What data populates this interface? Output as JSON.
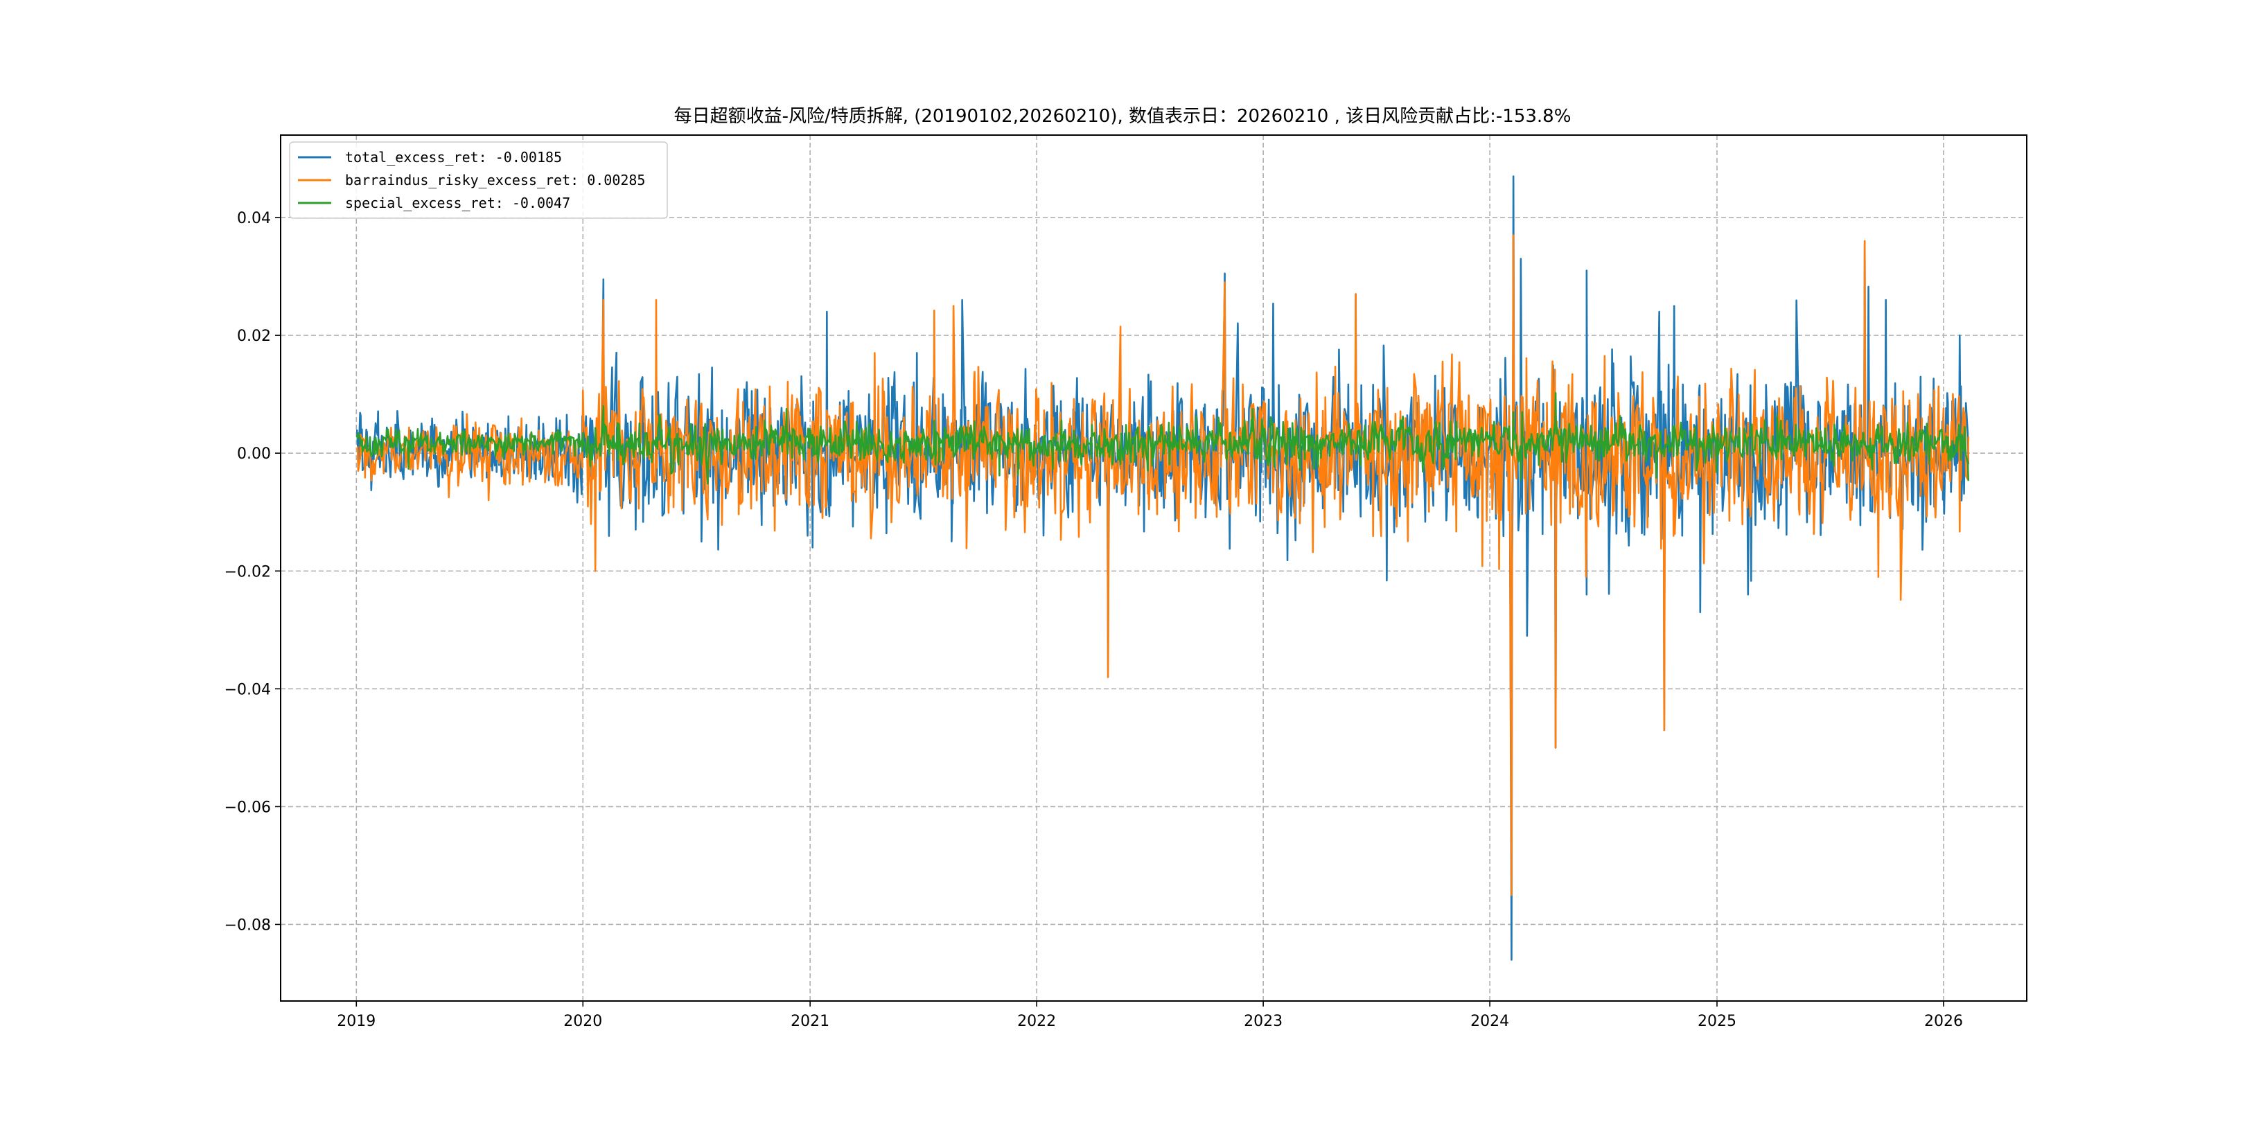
{
  "chart_data": {
    "type": "line",
    "title": "每日超额收益-风险/特质拆解, (20190102,20260210),  数值表示日：20260210 , 该日风险贡献占比:-153.8%",
    "xlabel": "",
    "ylabel": "",
    "x_range": [
      "2018-09-01",
      "2026-05-15"
    ],
    "ylim": [
      -0.093,
      0.054
    ],
    "grid": true,
    "legend_position": "upper-left",
    "xticks": [
      {
        "date": "2019-01-01",
        "label": "2019"
      },
      {
        "date": "2020-01-01",
        "label": "2020"
      },
      {
        "date": "2021-01-01",
        "label": "2021"
      },
      {
        "date": "2022-01-01",
        "label": "2022"
      },
      {
        "date": "2023-01-01",
        "label": "2023"
      },
      {
        "date": "2024-01-01",
        "label": "2024"
      },
      {
        "date": "2025-01-01",
        "label": "2025"
      },
      {
        "date": "2026-01-01",
        "label": "2026"
      }
    ],
    "yticks": [
      {
        "value": 0.04,
        "label": "0.04"
      },
      {
        "value": 0.02,
        "label": "0.02"
      },
      {
        "value": 0.0,
        "label": "0.00"
      },
      {
        "value": -0.02,
        "label": "−0.02"
      },
      {
        "value": -0.04,
        "label": "−0.04"
      },
      {
        "value": -0.06,
        "label": "−0.06"
      },
      {
        "value": -0.08,
        "label": "−0.08"
      }
    ],
    "series": [
      {
        "name": "total_excess_ret",
        "legend_label": "total_excess_ret: -0.00185",
        "color": "#1f77b4",
        "noise_scale": [
          0.0045,
          0.009,
          0.009,
          0.009,
          0.0095,
          0.011,
          0.01,
          0.009
        ],
        "points": [
          {
            "x": "2019-01-02",
            "y": 0.004
          },
          {
            "x": "2020-02-03",
            "y": 0.0295
          },
          {
            "x": "2020-07-10",
            "y": -0.015
          },
          {
            "x": "2021-01-05",
            "y": -0.016
          },
          {
            "x": "2021-01-28",
            "y": 0.024
          },
          {
            "x": "2021-09-03",
            "y": 0.026
          },
          {
            "x": "2022-04-26",
            "y": -0.038
          },
          {
            "x": "2022-10-31",
            "y": 0.0305
          },
          {
            "x": "2023-05-30",
            "y": 0.027
          },
          {
            "x": "2024-02-05",
            "y": -0.086
          },
          {
            "x": "2024-02-08",
            "y": 0.047
          },
          {
            "x": "2024-02-20",
            "y": 0.033
          },
          {
            "x": "2024-03-01",
            "y": -0.031
          },
          {
            "x": "2024-04-16",
            "y": -0.05
          },
          {
            "x": "2024-06-05",
            "y": -0.024
          },
          {
            "x": "2024-06-05",
            "y": 0.031
          },
          {
            "x": "2024-09-30",
            "y": 0.024
          },
          {
            "x": "2024-10-08",
            "y": -0.047
          },
          {
            "x": "2024-12-05",
            "y": -0.027
          },
          {
            "x": "2025-02-20",
            "y": -0.024
          },
          {
            "x": "2025-08-27",
            "y": 0.036
          },
          {
            "x": "2025-09-30",
            "y": 0.026
          },
          {
            "x": "2026-01-27",
            "y": 0.02
          },
          {
            "x": "2026-02-10",
            "y": -0.00185
          }
        ]
      },
      {
        "name": "barraindus_risky_excess_ret",
        "legend_label": "barraindus_risky_excess_ret: 0.00285",
        "color": "#ff7f0e",
        "noise_scale": [
          0.004,
          0.0085,
          0.0085,
          0.0085,
          0.009,
          0.0105,
          0.0095,
          0.0085
        ],
        "points": [
          {
            "x": "2019-01-02",
            "y": 0.001
          },
          {
            "x": "2020-01-21",
            "y": -0.02
          },
          {
            "x": "2020-02-03",
            "y": 0.026
          },
          {
            "x": "2020-04-28",
            "y": 0.026
          },
          {
            "x": "2021-08-20",
            "y": 0.025
          },
          {
            "x": "2022-04-26",
            "y": -0.038
          },
          {
            "x": "2022-10-31",
            "y": 0.029
          },
          {
            "x": "2023-05-30",
            "y": 0.027
          },
          {
            "x": "2024-02-05",
            "y": -0.075
          },
          {
            "x": "2024-02-08",
            "y": 0.037
          },
          {
            "x": "2024-04-16",
            "y": -0.05
          },
          {
            "x": "2024-10-08",
            "y": -0.047
          },
          {
            "x": "2025-08-27",
            "y": 0.036
          },
          {
            "x": "2025-09-18",
            "y": -0.021
          },
          {
            "x": "2026-02-10",
            "y": 0.00285
          }
        ]
      },
      {
        "name": "special_excess_ret",
        "legend_label": "special_excess_ret: -0.0047",
        "color": "#2ca02c",
        "noise_scale": [
          0.002,
          0.003,
          0.003,
          0.003,
          0.003,
          0.003,
          0.0028,
          0.0028
        ],
        "points": [
          {
            "x": "2019-01-02",
            "y": 0.003
          },
          {
            "x": "2020-02-03",
            "y": 0.008
          },
          {
            "x": "2024-02-08",
            "y": 0.007
          },
          {
            "x": "2024-02-22",
            "y": 0.007
          },
          {
            "x": "2026-02-10",
            "y": -0.0047
          }
        ]
      }
    ]
  }
}
